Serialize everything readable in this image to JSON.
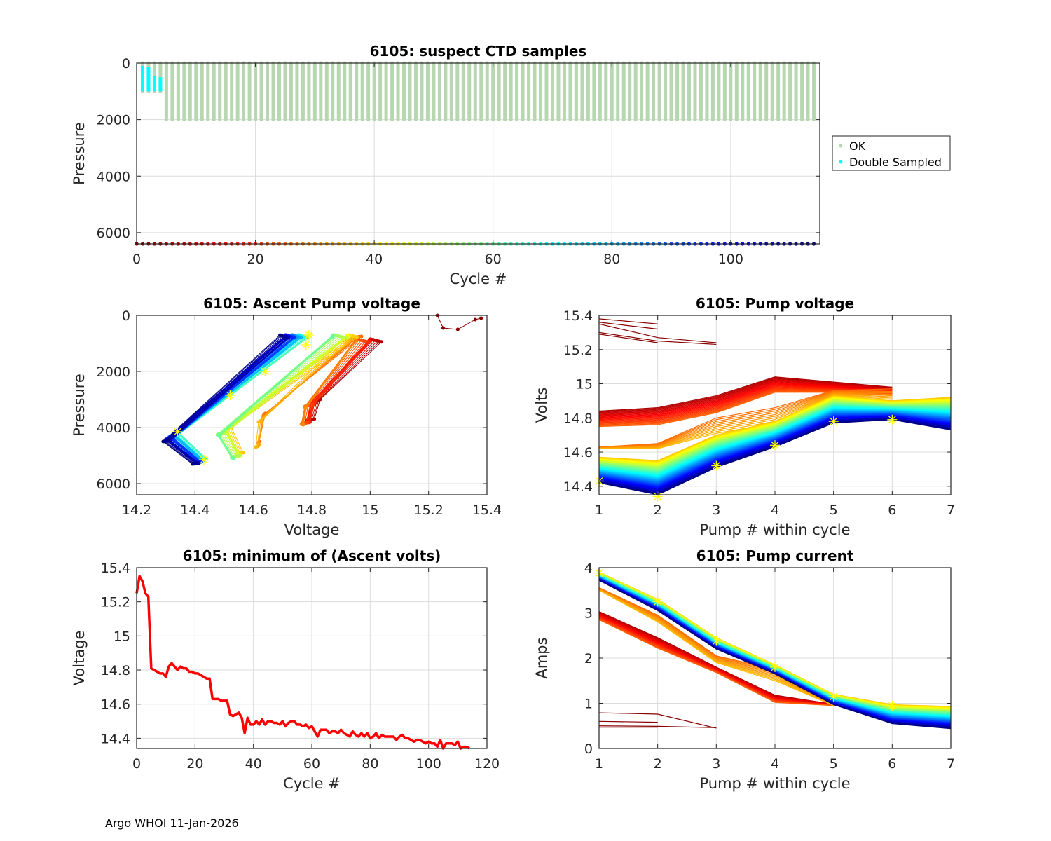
{
  "footer": "Argo WHOI 11-Jan-2026",
  "colormap": "jet",
  "highlight_color": "#ffff00",
  "chart_data": [
    {
      "id": "suspect",
      "type": "scatter",
      "title": "6105: suspect CTD samples",
      "xlabel": "Cycle #",
      "ylabel": "Pressure",
      "xlim": [
        0,
        115
      ],
      "ylim": [
        6400,
        0
      ],
      "yreverse": true,
      "xticks": [
        0,
        20,
        40,
        60,
        80,
        100
      ],
      "yticks": [
        0,
        2000,
        4000,
        6000
      ],
      "grid": true,
      "legend": {
        "placement": "right-outside",
        "entries": [
          {
            "label": "OK",
            "color": "#b7d7b0"
          },
          {
            "label": "Double Sampled",
            "color": "#00ffff"
          }
        ]
      },
      "ok_color": "#b7d7b0",
      "double_color": "#00ffff",
      "double_sampled": [
        {
          "cycle": 1,
          "pmin": 100,
          "pmax": 1000
        },
        {
          "cycle": 2,
          "pmin": 150,
          "pmax": 1000
        },
        {
          "cycle": 3,
          "pmin": 450,
          "pmax": 1000
        },
        {
          "cycle": 4,
          "pmin": 500,
          "pmax": 1000
        }
      ],
      "ok_profiles": {
        "first_cycle": 1,
        "last_cycle": 114,
        "pmin": 0,
        "pmax": 2000,
        "shallow_first_cycles": [
          1,
          2,
          3,
          4
        ],
        "shallow_pmax": 1000
      },
      "cycle_marker_row": {
        "pressure": 6400,
        "first_cycle": 0,
        "last_cycle": 114
      }
    },
    {
      "id": "ascent",
      "type": "line",
      "title": "6105: Ascent Pump voltage",
      "xlabel": "Voltage",
      "ylabel": "Pressure",
      "xlim": [
        14.2,
        15.4
      ],
      "ylim": [
        6400,
        0
      ],
      "yreverse": true,
      "xticks": [
        14.2,
        14.4,
        14.6,
        14.8,
        15,
        15.2,
        15.4
      ],
      "xticklabels": [
        "14.2",
        "14.4",
        "14.6",
        "14.8",
        "15",
        "15.2",
        "15.4"
      ],
      "yticks": [
        0,
        2000,
        4000,
        6000
      ],
      "grid": true,
      "groups": [
        {
          "cycles": [
            0,
            4
          ],
          "points": [
            [
              15.23,
              0
            ],
            [
              15.25,
              450
            ],
            [
              15.3,
              500
            ],
            [
              15.36,
              150
            ],
            [
              15.38,
              100
            ]
          ]
        },
        {
          "cycles": [
            5,
            30
          ],
          "start": [
            15.03,
            900
          ],
          "mid": [
            14.82,
            3000
          ],
          "end": [
            14.8,
            3700
          ]
        },
        {
          "cycles": [
            26,
            35
          ],
          "start": [
            14.98,
            800
          ],
          "mid": [
            14.65,
            3500
          ],
          "end": [
            14.63,
            4500
          ]
        },
        {
          "cycles": [
            36,
            60
          ],
          "start": [
            14.95,
            750
          ],
          "mid": [
            14.52,
            4000
          ],
          "end": [
            14.56,
            4900
          ]
        },
        {
          "cycles": [
            60,
            114
          ],
          "start": [
            14.78,
            750
          ],
          "mid": [
            14.34,
            4200
          ],
          "end": [
            14.43,
            5100
          ]
        }
      ],
      "highlighted_cycle_points": [
        [
          14.79,
          700
        ],
        [
          14.78,
          1050
        ],
        [
          14.64,
          2000
        ],
        [
          14.52,
          2850
        ],
        [
          14.34,
          4150
        ],
        [
          14.43,
          5150
        ]
      ]
    },
    {
      "id": "pumpvolt",
      "type": "line",
      "title": "6105: Pump voltage",
      "xlabel": "Pump # within cycle",
      "ylabel": "Volts",
      "xlim": [
        1,
        7
      ],
      "ylim": [
        14.35,
        15.4
      ],
      "xticks": [
        1,
        2,
        3,
        4,
        5,
        6,
        7
      ],
      "yticks": [
        14.4,
        14.6,
        14.8,
        15,
        15.2,
        15.4
      ],
      "yticklabels": [
        "14.4",
        "14.6",
        "14.8",
        "15",
        "15.2",
        "15.4"
      ],
      "grid": true,
      "series_groups": [
        {
          "cycles": [
            0,
            4
          ],
          "profiles": [
            [
              15.38,
              15.35
            ],
            [
              15.36,
              15.32
            ],
            [
              15.35,
              15.27,
              15.24
            ],
            [
              15.3,
              15.25,
              15.23
            ],
            [
              15.29,
              15.24
            ]
          ]
        },
        {
          "cycles": [
            5,
            25
          ],
          "from": [
            14.84,
            14.86,
            14.93,
            15.04,
            15.01,
            14.98
          ],
          "to": [
            14.75,
            14.76,
            14.83,
            14.95,
            14.95,
            14.93
          ]
        },
        {
          "cycles": [
            26,
            35
          ],
          "from": [
            14.63,
            14.65,
            14.8,
            14.86,
            14.96,
            14.97
          ],
          "to": [
            14.62,
            14.62,
            14.71,
            14.77,
            14.93,
            14.9
          ]
        },
        {
          "cycles": [
            36,
            114
          ],
          "from": [
            14.57,
            14.55,
            14.7,
            14.78,
            14.93,
            14.9,
            14.92
          ],
          "to": [
            14.42,
            14.35,
            14.51,
            14.63,
            14.77,
            14.79,
            14.73
          ]
        }
      ],
      "highlighted_cycle": [
        14.43,
        14.34,
        14.52,
        14.64,
        14.78,
        14.79
      ]
    },
    {
      "id": "minvolt",
      "type": "line",
      "title": "6105: minimum of (Ascent volts)",
      "xlabel": "Cycle #",
      "ylabel": "Voltage",
      "xlim": [
        0,
        120
      ],
      "ylim": [
        14.34,
        15.4
      ],
      "xticks": [
        0,
        20,
        40,
        60,
        80,
        100,
        120
      ],
      "yticks": [
        14.4,
        14.6,
        14.8,
        15,
        15.2,
        15.4
      ],
      "yticklabels": [
        "14.4",
        "14.6",
        "14.8",
        "15",
        "15.2",
        "15.4"
      ],
      "grid": true,
      "color": "#ff0000",
      "x": [
        0,
        1,
        2,
        3,
        4,
        5,
        6,
        7,
        8,
        9,
        10,
        11,
        12,
        13,
        14,
        15,
        16,
        17,
        18,
        19,
        20,
        21,
        22,
        23,
        24,
        25,
        26,
        27,
        28,
        29,
        30,
        31,
        32,
        33,
        34,
        35,
        36,
        37,
        38,
        39,
        40,
        41,
        42,
        43,
        44,
        45,
        46,
        47,
        48,
        49,
        50,
        51,
        52,
        53,
        54,
        55,
        56,
        57,
        58,
        59,
        60,
        61,
        62,
        63,
        64,
        65,
        66,
        67,
        68,
        69,
        70,
        71,
        72,
        73,
        74,
        75,
        76,
        77,
        78,
        79,
        80,
        81,
        82,
        83,
        84,
        85,
        86,
        87,
        88,
        89,
        90,
        91,
        92,
        93,
        94,
        95,
        96,
        97,
        98,
        99,
        100,
        101,
        102,
        103,
        104,
        105,
        106,
        107,
        108,
        109,
        110,
        111,
        112,
        113,
        114
      ],
      "y": [
        15.25,
        15.35,
        15.32,
        15.25,
        15.23,
        14.81,
        14.8,
        14.79,
        14.78,
        14.78,
        14.76,
        14.82,
        14.84,
        14.82,
        14.8,
        14.82,
        14.81,
        14.81,
        14.79,
        14.79,
        14.78,
        14.78,
        14.77,
        14.76,
        14.75,
        14.75,
        14.63,
        14.63,
        14.63,
        14.62,
        14.62,
        14.62,
        14.54,
        14.53,
        14.54,
        14.55,
        14.52,
        14.43,
        14.52,
        14.48,
        14.48,
        14.5,
        14.48,
        14.51,
        14.48,
        14.5,
        14.5,
        14.49,
        14.49,
        14.48,
        14.5,
        14.47,
        14.49,
        14.5,
        14.5,
        14.48,
        14.48,
        14.47,
        14.48,
        14.46,
        14.47,
        14.44,
        14.41,
        14.45,
        14.45,
        14.45,
        14.43,
        14.44,
        14.44,
        14.43,
        14.45,
        14.43,
        14.42,
        14.41,
        14.44,
        14.42,
        14.41,
        14.43,
        14.41,
        14.43,
        14.4,
        14.41,
        14.43,
        14.4,
        14.42,
        14.41,
        14.41,
        14.41,
        14.41,
        14.39,
        14.41,
        14.42,
        14.4,
        14.4,
        14.39,
        14.38,
        14.39,
        14.39,
        14.38,
        14.37,
        14.38,
        14.37,
        14.37,
        14.35,
        14.39,
        14.34,
        14.37,
        14.37,
        14.37,
        14.36,
        14.38,
        14.34,
        14.35,
        14.35,
        14.34
      ]
    },
    {
      "id": "pumpcurr",
      "type": "line",
      "title": "6105: Pump current",
      "xlabel": "Pump # within cycle",
      "ylabel": "Amps",
      "xlim": [
        1,
        7
      ],
      "ylim": [
        0,
        4
      ],
      "xticks": [
        1,
        2,
        3,
        4,
        5,
        6,
        7
      ],
      "yticks": [
        0,
        1,
        2,
        3,
        4
      ],
      "grid": true,
      "series_groups": [
        {
          "cycles": [
            0,
            4
          ],
          "profiles": [
            [
              0.79,
              0.76,
              0.45
            ],
            [
              0.6,
              0.58
            ],
            [
              0.5,
              0.49,
              0.46
            ],
            [
              0.47,
              0.47
            ]
          ]
        },
        {
          "cycles": [
            5,
            25
          ],
          "from": [
            3.03,
            2.45,
            1.8,
            1.18,
            0.98,
            0.95
          ],
          "to": [
            2.85,
            2.22,
            1.68,
            1.02,
            0.95,
            0.92
          ]
        },
        {
          "cycles": [
            26,
            35
          ],
          "from": [
            3.56,
            2.95,
            2.05,
            1.75,
            0.97
          ],
          "to": [
            3.5,
            2.8,
            1.9,
            1.5,
            0.95
          ]
        },
        {
          "cycles": [
            36,
            114
          ],
          "from": [
            3.9,
            3.3,
            2.45,
            1.85,
            1.2,
            0.97,
            0.93
          ],
          "to": [
            3.72,
            3.05,
            2.2,
            1.65,
            0.97,
            0.55,
            0.44
          ]
        }
      ],
      "highlighted_cycle": [
        3.88,
        3.25,
        2.38,
        1.8,
        1.15,
        0.95
      ]
    }
  ]
}
